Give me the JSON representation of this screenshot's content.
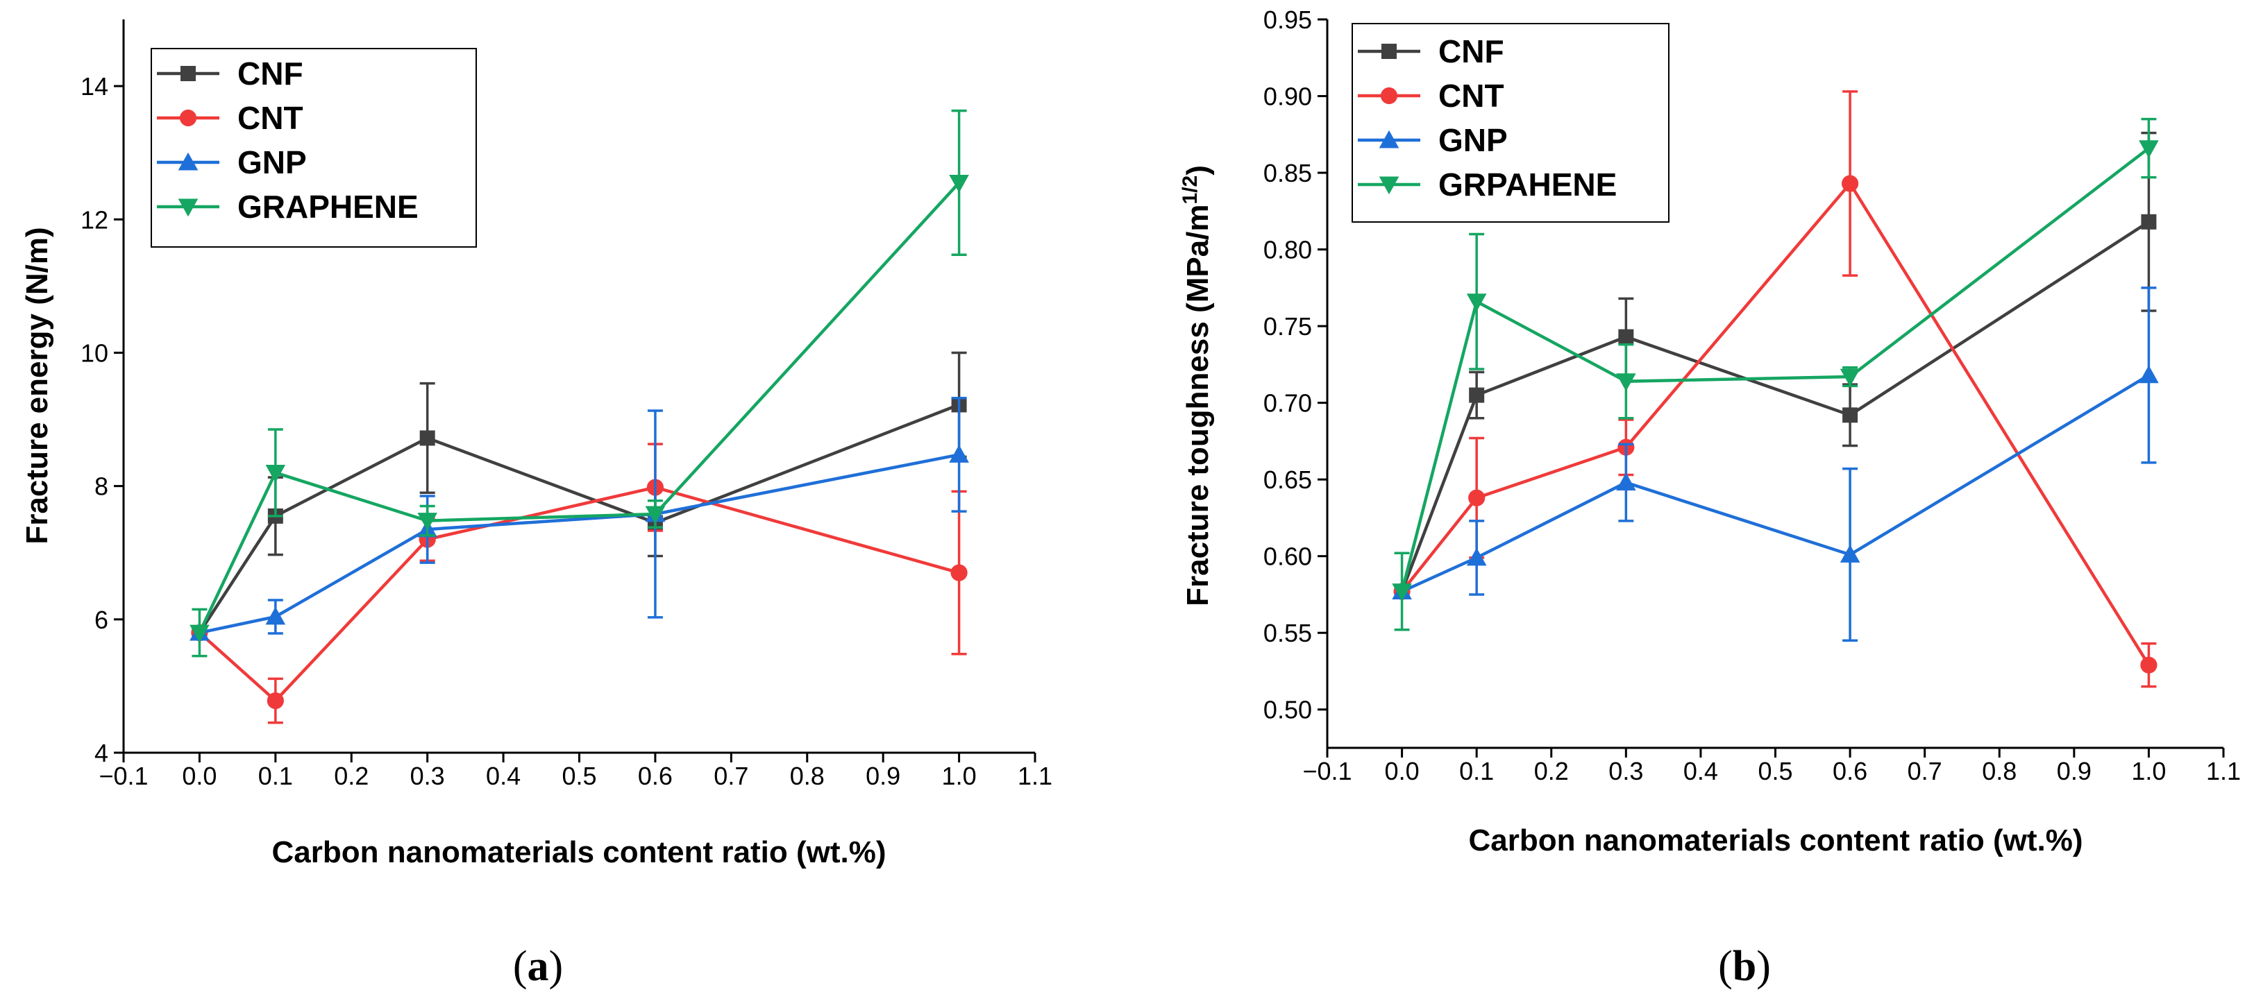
{
  "chart_data": [
    {
      "type": "line",
      "caption": {
        "open": "(",
        "letter": "a",
        "close": ")"
      },
      "title": "",
      "xlabel": "Carbon nanomaterials content ratio (wt.%)",
      "ylabel": "Fracture energy (N/m)",
      "xlim": [
        -0.1,
        1.1
      ],
      "ylim": [
        4,
        15
      ],
      "xticks": [
        -0.1,
        0.0,
        0.1,
        0.2,
        0.3,
        0.4,
        0.5,
        0.6,
        0.7,
        0.8,
        0.9,
        1.0,
        1.1
      ],
      "xtick_labels": [
        "−0.1",
        "0.0",
        "0.1",
        "0.2",
        "0.3",
        "0.4",
        "0.5",
        "0.6",
        "0.7",
        "0.8",
        "0.9",
        "1.0",
        "1.1"
      ],
      "yticks": [
        4,
        6,
        8,
        10,
        12,
        14
      ],
      "ytick_labels": [
        "4",
        "6",
        "8",
        "10",
        "12",
        "14"
      ],
      "legend_position": "top-left",
      "series": [
        {
          "name": "CNF",
          "color": "#404040",
          "marker": "square",
          "x": [
            0.0,
            0.1,
            0.3,
            0.6,
            1.0
          ],
          "y": [
            5.8,
            7.55,
            8.72,
            7.45,
            9.22
          ],
          "err": [
            0.0,
            0.58,
            0.82,
            0.5,
            0.78
          ]
        },
        {
          "name": "CNT",
          "color": "#f03a3a",
          "marker": "circle",
          "x": [
            0.0,
            0.1,
            0.3,
            0.6,
            1.0
          ],
          "y": [
            5.8,
            4.78,
            7.2,
            7.98,
            6.7
          ],
          "err": [
            0.0,
            0.33,
            0.32,
            0.65,
            1.22
          ]
        },
        {
          "name": "GNP",
          "color": "#1f6fd8",
          "marker": "triangle-up",
          "x": [
            0.0,
            0.1,
            0.3,
            0.6,
            1.0
          ],
          "y": [
            5.8,
            6.04,
            7.35,
            7.58,
            8.47
          ],
          "err": [
            0.0,
            0.25,
            0.5,
            1.55,
            0.85
          ]
        },
        {
          "name": "GRAPHENE",
          "color": "#15a662",
          "marker": "triangle-down",
          "x": [
            0.0,
            0.1,
            0.3,
            0.6,
            1.0
          ],
          "y": [
            5.8,
            8.2,
            7.48,
            7.58,
            12.55
          ],
          "err": [
            0.35,
            0.65,
            0.22,
            0.2,
            1.08
          ]
        }
      ]
    },
    {
      "type": "line",
      "caption": {
        "open": "(",
        "letter": "b",
        "close": ")"
      },
      "title": "",
      "xlabel": "Carbon nanomaterials content ratio (wt.%)",
      "ylabel": "Fracture toughness (MPa/m",
      "ylabel_superscript": "1/2",
      "ylabel_close": ")",
      "xlim": [
        -0.1,
        1.1
      ],
      "ylim": [
        0.475,
        0.95
      ],
      "xticks": [
        -0.1,
        0.0,
        0.1,
        0.2,
        0.3,
        0.4,
        0.5,
        0.6,
        0.7,
        0.8,
        0.9,
        1.0,
        1.1
      ],
      "xtick_labels": [
        "−0.1",
        "0.0",
        "0.1",
        "0.2",
        "0.3",
        "0.4",
        "0.5",
        "0.6",
        "0.7",
        "0.8",
        "0.9",
        "1.0",
        "1.1"
      ],
      "yticks": [
        0.5,
        0.55,
        0.6,
        0.65,
        0.7,
        0.75,
        0.8,
        0.85,
        0.9,
        0.95
      ],
      "ytick_labels": [
        "0.50",
        "0.55",
        "0.60",
        "0.65",
        "0.70",
        "0.75",
        "0.80",
        "0.85",
        "0.90",
        "0.95"
      ],
      "legend_position": "top-left",
      "series": [
        {
          "name": "CNF",
          "color": "#404040",
          "marker": "square",
          "x": [
            0.0,
            0.1,
            0.3,
            0.6,
            1.0
          ],
          "y": [
            0.577,
            0.705,
            0.743,
            0.692,
            0.818
          ],
          "err": [
            0.0,
            0.015,
            0.025,
            0.02,
            0.058
          ]
        },
        {
          "name": "CNT",
          "color": "#f03a3a",
          "marker": "circle",
          "x": [
            0.0,
            0.1,
            0.3,
            0.6,
            1.0
          ],
          "y": [
            0.577,
            0.638,
            0.671,
            0.843,
            0.529
          ],
          "err": [
            0.0,
            0.039,
            0.018,
            0.06,
            0.014
          ]
        },
        {
          "name": "GNP",
          "color": "#1f6fd8",
          "marker": "triangle-up",
          "x": [
            0.0,
            0.1,
            0.3,
            0.6,
            1.0
          ],
          "y": [
            0.577,
            0.599,
            0.648,
            0.601,
            0.718
          ],
          "err": [
            0.0,
            0.024,
            0.025,
            0.056,
            0.057
          ]
        },
        {
          "name": "GRPAHENE",
          "color": "#15a662",
          "marker": "triangle-down",
          "x": [
            0.0,
            0.1,
            0.3,
            0.6,
            1.0
          ],
          "y": [
            0.577,
            0.766,
            0.714,
            0.717,
            0.866
          ],
          "err": [
            0.025,
            0.044,
            0.024,
            0.006,
            0.019
          ]
        }
      ]
    }
  ]
}
